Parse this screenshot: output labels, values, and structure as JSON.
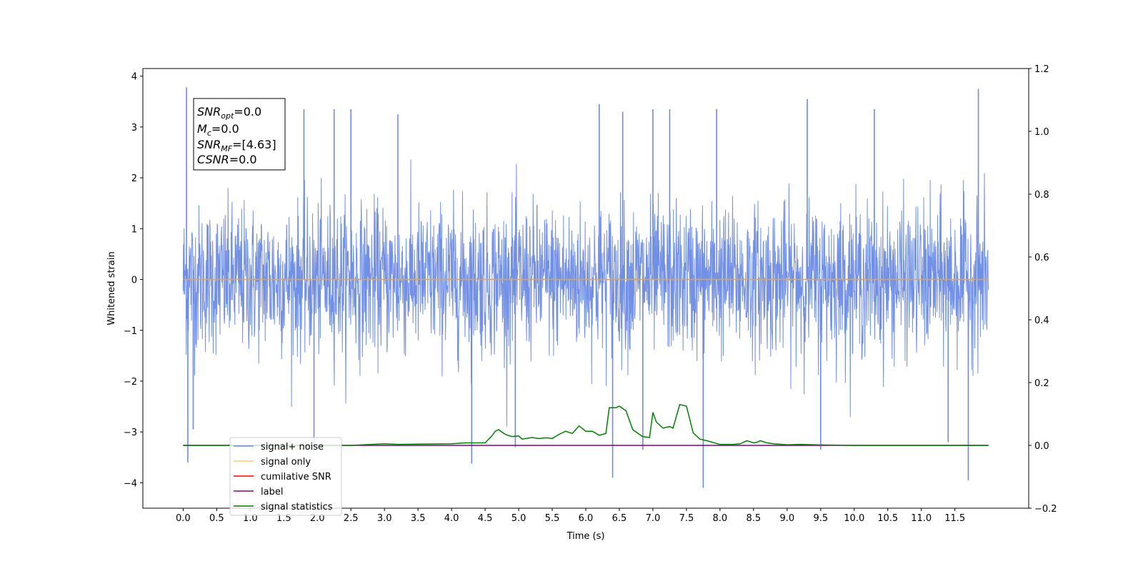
{
  "chart_data": {
    "type": "line",
    "xlabel": "Time (s)",
    "ylabel": "Whitened strain",
    "xlim": [
      -0.6,
      12.6
    ],
    "ylim": [
      -4.5,
      4.15
    ],
    "y2lim": [
      -0.2,
      1.2
    ],
    "xticks": [
      0.0,
      0.5,
      1.0,
      1.5,
      2.0,
      2.5,
      3.0,
      3.5,
      4.0,
      4.5,
      5.0,
      5.5,
      6.0,
      6.5,
      7.0,
      7.5,
      8.0,
      8.5,
      9.0,
      9.5,
      10.0,
      10.5,
      11.0,
      11.5
    ],
    "xtick_labels": [
      "0.0",
      "0.5",
      "1.0",
      "1.5",
      "2.0",
      "2.5",
      "3.0",
      "3.5",
      "4.0",
      "4.5",
      "5.0",
      "5.5",
      "6.0",
      "6.5",
      "7.0",
      "7.5",
      "8.0",
      "8.5",
      "9.0",
      "9.5",
      "10.0",
      "10.5",
      "11.0",
      "11.5"
    ],
    "yticks": [
      -4,
      -3,
      -2,
      -1,
      0,
      1,
      2,
      3,
      4
    ],
    "ytick_labels": [
      "−4",
      "−3",
      "−2",
      "−1",
      "0",
      "1",
      "2",
      "3",
      "4"
    ],
    "y2ticks": [
      -0.2,
      0.0,
      0.2,
      0.4,
      0.6,
      0.8,
      1.0,
      1.2
    ],
    "y2tick_labels": [
      "−0.2",
      "0.0",
      "0.2",
      "0.4",
      "0.6",
      "0.8",
      "1.0",
      "1.2"
    ],
    "grid": false,
    "legend_position": "lower-left",
    "annotation": [
      "SNR_opt=0.0",
      "M_c=0.0",
      "SNR_MF=[4.63]",
      "CSNR=0.0"
    ],
    "series": [
      {
        "name": "signal+ noise",
        "color": "#6c8ae6",
        "axis": "left",
        "style": "noise",
        "x_range": [
          0.0,
          12.0
        ],
        "typical_range": [
          -2.0,
          2.0
        ],
        "spikes": [
          [
            0.05,
            3.78
          ],
          [
            0.07,
            -3.6
          ],
          [
            0.15,
            -2.95
          ],
          [
            1.8,
            3.35
          ],
          [
            1.95,
            -3.3
          ],
          [
            2.25,
            3.35
          ],
          [
            2.5,
            3.35
          ],
          [
            3.2,
            3.25
          ],
          [
            4.3,
            -3.62
          ],
          [
            4.95,
            -3.3
          ],
          [
            6.2,
            3.45
          ],
          [
            6.4,
            -3.9
          ],
          [
            6.55,
            3.3
          ],
          [
            6.85,
            -3.35
          ],
          [
            7.0,
            3.35
          ],
          [
            7.25,
            3.35
          ],
          [
            7.75,
            -4.1
          ],
          [
            7.95,
            3.35
          ],
          [
            9.3,
            3.55
          ],
          [
            9.5,
            -3.35
          ],
          [
            10.3,
            3.35
          ],
          [
            11.4,
            -3.2
          ],
          [
            11.7,
            -3.95
          ],
          [
            11.85,
            3.75
          ]
        ]
      },
      {
        "name": "signal only",
        "color": "#ffa500",
        "axis": "left",
        "x": [
          0.0,
          12.0
        ],
        "y": [
          0.0,
          0.0
        ]
      },
      {
        "name": "cumilative SNR",
        "color": "#ff0000",
        "axis": "right",
        "x": [],
        "y": []
      },
      {
        "name": "label",
        "color": "#800080",
        "axis": "right",
        "x": [
          0.0,
          12.0
        ],
        "y": [
          0.0,
          0.0
        ]
      },
      {
        "name": "signal statistics",
        "color": "#008000",
        "axis": "right",
        "x": [
          0.0,
          2.5,
          2.7,
          3.0,
          3.2,
          3.5,
          4.0,
          4.2,
          4.5,
          4.6,
          4.65,
          4.7,
          4.8,
          4.9,
          5.0,
          5.05,
          5.2,
          5.3,
          5.4,
          5.5,
          5.6,
          5.7,
          5.8,
          5.85,
          5.9,
          6.0,
          6.1,
          6.2,
          6.3,
          6.35,
          6.45,
          6.5,
          6.6,
          6.7,
          6.8,
          6.85,
          6.95,
          7.0,
          7.05,
          7.15,
          7.25,
          7.3,
          7.4,
          7.5,
          7.6,
          7.7,
          7.8,
          8.0,
          8.2,
          8.3,
          8.4,
          8.5,
          8.55,
          8.6,
          8.7,
          8.8,
          9.0,
          9.2,
          9.4,
          9.6,
          10.0,
          11.0,
          12.0
        ],
        "y": [
          0.0,
          0.0,
          0.002,
          0.005,
          0.003,
          0.004,
          0.005,
          0.008,
          0.008,
          0.03,
          0.045,
          0.05,
          0.035,
          0.028,
          0.03,
          0.02,
          0.025,
          0.022,
          0.024,
          0.022,
          0.035,
          0.045,
          0.038,
          0.05,
          0.062,
          0.045,
          0.045,
          0.032,
          0.038,
          0.12,
          0.12,
          0.125,
          0.11,
          0.05,
          0.035,
          0.028,
          0.025,
          0.105,
          0.075,
          0.055,
          0.06,
          0.055,
          0.13,
          0.125,
          0.04,
          0.02,
          0.015,
          0.003,
          0.003,
          0.005,
          0.015,
          0.008,
          0.01,
          0.015,
          0.008,
          0.005,
          0.002,
          0.003,
          0.002,
          0.001,
          0.0,
          0.0,
          0.0
        ]
      }
    ]
  }
}
